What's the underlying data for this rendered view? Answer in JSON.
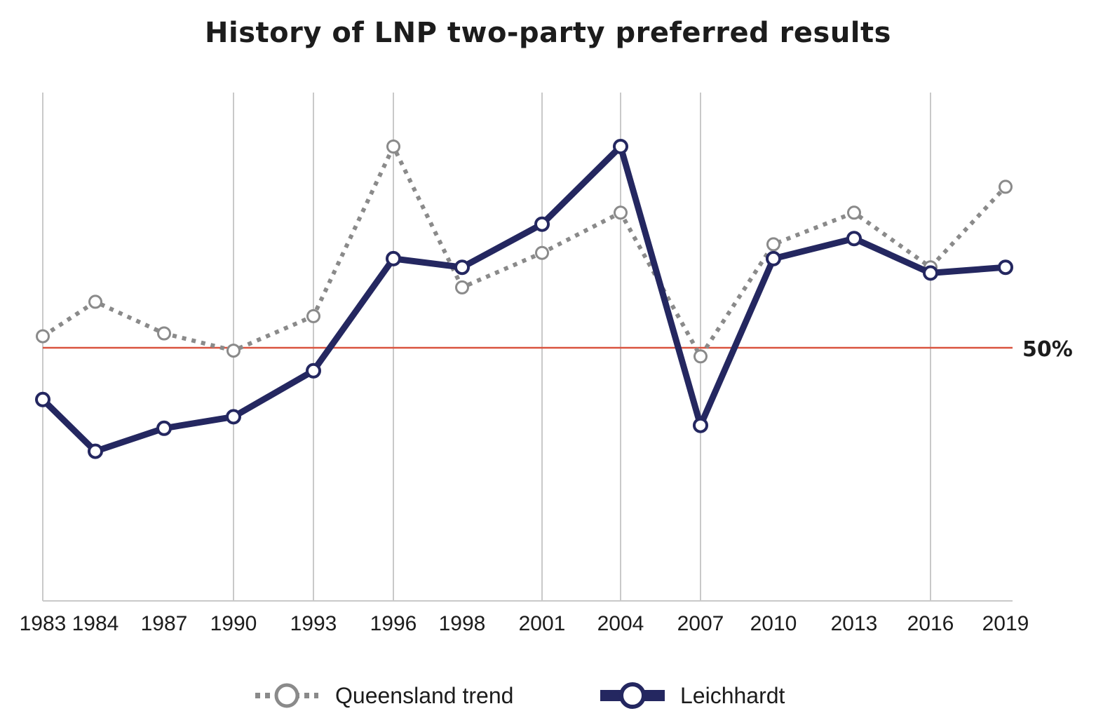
{
  "chart_data": {
    "type": "line",
    "title": "History of LNP two-party preferred results",
    "xlabel": "",
    "ylabel": "",
    "categories": [
      "1983",
      "1984",
      "1987",
      "1990",
      "1993",
      "1996",
      "1998",
      "2001",
      "2004",
      "2007",
      "2010",
      "2013",
      "2016",
      "2019"
    ],
    "ylim": [
      40,
      60
    ],
    "grid": "vertical",
    "series": [
      {
        "name": "Queensland trend",
        "color": "#8a8a8a",
        "style": "dotted",
        "values": [
          50.4,
          51.6,
          50.5,
          49.9,
          51.1,
          57.0,
          52.1,
          53.3,
          54.7,
          49.7,
          53.6,
          54.7,
          52.8,
          55.6
        ]
      },
      {
        "name": "Leichhardt",
        "color": "#242760",
        "style": "solid",
        "values": [
          48.2,
          46.4,
          47.2,
          47.6,
          49.2,
          53.1,
          52.8,
          54.3,
          57.0,
          47.3,
          53.1,
          53.8,
          52.6,
          52.8
        ]
      }
    ],
    "reference_line": {
      "value": 50,
      "label": "50%",
      "color": "#d9533f"
    },
    "legend": {
      "position": "bottom",
      "entries": [
        "Queensland trend",
        "Leichhardt"
      ]
    }
  }
}
